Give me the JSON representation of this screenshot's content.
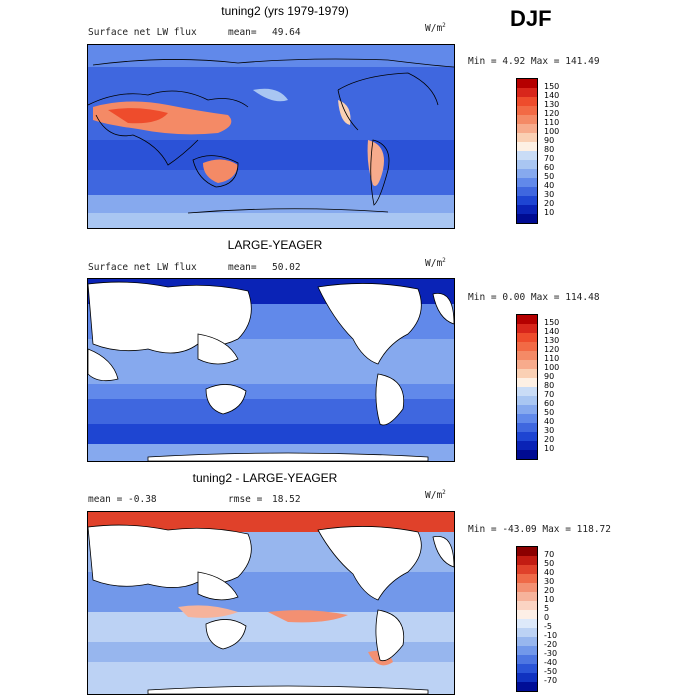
{
  "season": "DJF",
  "units_label": "W/m",
  "units_exp": "2",
  "panels": [
    {
      "title": "tuning2 (yrs 1979-1979)",
      "left_label": "Surface net LW flux",
      "stat_label": "mean=",
      "stat_value": "49.64",
      "minmax": "Min =    4.92 Max = 141.49",
      "levels": [
        "150",
        "140",
        "130",
        "120",
        "110",
        "100",
        "90",
        "80",
        "70",
        "60",
        "50",
        "40",
        "30",
        "20",
        "10"
      ],
      "colors": [
        "#b50000",
        "#d8261b",
        "#ee4c2c",
        "#f26a45",
        "#f48a66",
        "#f7ab8c",
        "#fad0b4",
        "#fdf0e4",
        "#c9dcf6",
        "#a9c6f2",
        "#86a9ee",
        "#6189ea",
        "#3f67df",
        "#1e45d2",
        "#0a23b6",
        "#000b92"
      ]
    },
    {
      "title": "LARGE-YEAGER",
      "left_label": "Surface net LW flux",
      "stat_label": "mean=",
      "stat_value": "50.02",
      "minmax": "Min =    0.00 Max = 114.48",
      "levels": [
        "150",
        "140",
        "130",
        "120",
        "110",
        "100",
        "90",
        "80",
        "70",
        "60",
        "50",
        "40",
        "30",
        "20",
        "10"
      ],
      "colors": [
        "#b50000",
        "#d8261b",
        "#ee4c2c",
        "#f26a45",
        "#f48a66",
        "#f7ab8c",
        "#fad0b4",
        "#fdf0e4",
        "#c9dcf6",
        "#a9c6f2",
        "#86a9ee",
        "#6189ea",
        "#3f67df",
        "#1e45d2",
        "#0a23b6",
        "#000b92"
      ]
    },
    {
      "title": "tuning2 - LARGE-YEAGER",
      "left_label": "mean =   -0.38",
      "stat_label": "rmse =",
      "stat_value": "18.52",
      "minmax": "Min = -43.09 Max = 118.72",
      "levels": [
        "70",
        "50",
        "40",
        "30",
        "20",
        "10",
        "5",
        "0",
        "-5",
        "-10",
        "-20",
        "-30",
        "-40",
        "-50",
        "-70"
      ],
      "colors": [
        "#8b0000",
        "#c21c12",
        "#e0412a",
        "#ef6a48",
        "#f39072",
        "#f6b39b",
        "#fbd4c3",
        "#fdefe6",
        "#dde9fa",
        "#bcd2f4",
        "#97b6ee",
        "#7298ea",
        "#4d76e2",
        "#2a54d7",
        "#1032c0",
        "#000e96"
      ]
    }
  ]
}
